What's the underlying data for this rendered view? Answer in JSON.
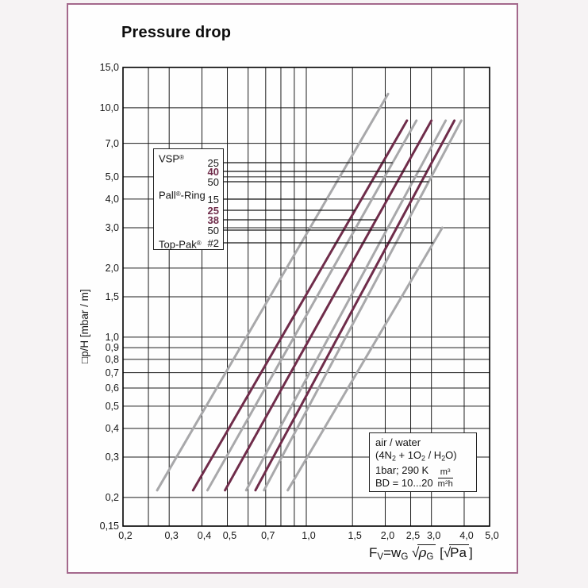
{
  "page": {
    "title": "Pressure drop"
  },
  "colors": {
    "maroon": "#6f2c4a",
    "gray": "#a8a8aa",
    "grid": "#1c1c1c",
    "frame": "#000000",
    "leader": "#141414",
    "page_border": "#a4688c"
  },
  "chart_data": {
    "type": "line",
    "log_x": true,
    "log_y": true,
    "grid": "on",
    "title": "Pressure drop",
    "xlabel": "FV = wG √ρG [√Pa]",
    "ylabel": "□p/H [mbar / m]",
    "xlim": [
      0.2,
      5.0
    ],
    "ylim": [
      0.15,
      15.0
    ],
    "x_gridlines": [
      {
        "v": 0.2,
        "label": "0,2"
      },
      {
        "v": 0.25,
        "label": ""
      },
      {
        "v": 0.3,
        "label": "0,3"
      },
      {
        "v": 0.4,
        "label": "0,4"
      },
      {
        "v": 0.5,
        "label": "0,5"
      },
      {
        "v": 0.6,
        "label": ""
      },
      {
        "v": 0.7,
        "label": "0,7"
      },
      {
        "v": 0.8,
        "label": ""
      },
      {
        "v": 0.9,
        "label": ""
      },
      {
        "v": 1.0,
        "label": "1,0"
      },
      {
        "v": 1.5,
        "label": "1,5"
      },
      {
        "v": 2.0,
        "label": "2,0"
      },
      {
        "v": 2.5,
        "label": "2,5"
      },
      {
        "v": 3.0,
        "label": "3,0"
      },
      {
        "v": 4.0,
        "label": "4,0"
      },
      {
        "v": 5.0,
        "label": "5,0"
      }
    ],
    "y_gridlines": [
      {
        "v": 15.0,
        "label": "15,0"
      },
      {
        "v": 10.0,
        "label": "10,0"
      },
      {
        "v": 7.0,
        "label": "7,0"
      },
      {
        "v": 5.0,
        "label": "5,0"
      },
      {
        "v": 4.0,
        "label": "4,0"
      },
      {
        "v": 3.0,
        "label": "3,0"
      },
      {
        "v": 2.0,
        "label": "2,0"
      },
      {
        "v": 1.5,
        "label": "1,5"
      },
      {
        "v": 1.0,
        "label": "1,0"
      },
      {
        "v": 0.9,
        "label": "0,9"
      },
      {
        "v": 0.8,
        "label": "0,8"
      },
      {
        "v": 0.7,
        "label": "0,7"
      },
      {
        "v": 0.6,
        "label": "0,6"
      },
      {
        "v": 0.5,
        "label": "0,5"
      },
      {
        "v": 0.4,
        "label": "0,4"
      },
      {
        "v": 0.3,
        "label": "0,3"
      },
      {
        "v": 0.2,
        "label": "0,2"
      },
      {
        "v": 0.15,
        "label": "0,15"
      }
    ],
    "series": [
      {
        "name": "Pall-Ring 15",
        "color_key": "gray",
        "points": [
          [
            0.27,
            0.215
          ],
          [
            2.05,
            11.5
          ]
        ]
      },
      {
        "name": "Pall-Ring 25",
        "color_key": "maroon",
        "points": [
          [
            0.37,
            0.215
          ],
          [
            2.42,
            8.8
          ]
        ]
      },
      {
        "name": "VSP 25",
        "color_key": "gray",
        "points": [
          [
            0.42,
            0.215
          ],
          [
            2.63,
            8.8
          ]
        ]
      },
      {
        "name": "Pall-Ring 38",
        "color_key": "maroon",
        "points": [
          [
            0.49,
            0.215
          ],
          [
            3.0,
            8.8
          ]
        ]
      },
      {
        "name": "Pall-Ring 50",
        "color_key": "gray",
        "points": [
          [
            0.59,
            0.215
          ],
          [
            3.4,
            8.8
          ]
        ]
      },
      {
        "name": "VSP 40",
        "color_key": "maroon",
        "points": [
          [
            0.64,
            0.215
          ],
          [
            3.67,
            8.8
          ]
        ]
      },
      {
        "name": "VSP 50",
        "color_key": "gray",
        "points": [
          [
            0.69,
            0.215
          ],
          [
            3.9,
            8.8
          ]
        ]
      },
      {
        "name": "Top-Pak #2",
        "color_key": "gray",
        "points": [
          [
            0.85,
            0.215
          ],
          [
            3.3,
            3.0
          ]
        ]
      }
    ],
    "legend_position": "upper-left-inside",
    "xlabel_rich": [
      {
        "t": "F"
      },
      {
        "sub": "V"
      },
      {
        "t": "=w"
      },
      {
        "sub": "G"
      },
      {
        "t": " "
      },
      {
        "rad": [
          {
            "it": "ρ"
          },
          {
            "sub": "G"
          }
        ]
      },
      {
        "t": " ["
      },
      {
        "rad": [
          {
            "t": "Pa"
          }
        ]
      },
      {
        "t": "]"
      }
    ]
  },
  "legend": {
    "rows": [
      {
        "kind": "group",
        "text": "VSP®",
        "rich": [
          {
            "t": "VSP"
          },
          {
            "sup": "®"
          }
        ]
      },
      {
        "kind": "item",
        "label": "25",
        "maroon": false,
        "series": "VSP 25"
      },
      {
        "kind": "item",
        "label": "40",
        "maroon": true,
        "series": "VSP 40"
      },
      {
        "kind": "item",
        "label": "50",
        "maroon": false,
        "series": "VSP 50"
      },
      {
        "kind": "group",
        "text": "Pall®-Ring",
        "rich": [
          {
            "t": "Pall"
          },
          {
            "sup": "®"
          },
          {
            "t": "-Ring"
          }
        ]
      },
      {
        "kind": "item",
        "label": "15",
        "maroon": false,
        "series": "Pall-Ring 15"
      },
      {
        "kind": "item",
        "label": "25",
        "maroon": true,
        "series": "Pall-Ring 25"
      },
      {
        "kind": "item",
        "label": "38",
        "maroon": true,
        "series": "Pall-Ring 38"
      },
      {
        "kind": "item",
        "label": "50",
        "maroon": false,
        "series": "Pall-Ring 50"
      },
      {
        "kind": "group",
        "text": "Top-Pak®",
        "rich": [
          {
            "t": "Top-Pak"
          },
          {
            "sup": "®"
          }
        ]
      },
      {
        "kind": "item",
        "label": "#2",
        "maroon": false,
        "series": "Top-Pak #2"
      }
    ]
  },
  "annotation": {
    "lines": [
      [
        {
          "t": "air / water"
        }
      ],
      [
        {
          "t": "(4N"
        },
        {
          "sub": "2"
        },
        {
          "t": " + 1O"
        },
        {
          "sub": "2"
        },
        {
          "t": " / H"
        },
        {
          "sub": "2"
        },
        {
          "t": "O)"
        }
      ],
      [
        {
          "t": "1bar; 290 K"
        }
      ],
      [
        {
          "t": "BD = 10...20"
        }
      ]
    ],
    "fraction": {
      "num": [
        {
          "t": "m"
        },
        {
          "sup": "3"
        }
      ],
      "den": [
        {
          "t": "m"
        },
        {
          "sup": "2"
        },
        {
          "t": "h"
        }
      ]
    }
  }
}
